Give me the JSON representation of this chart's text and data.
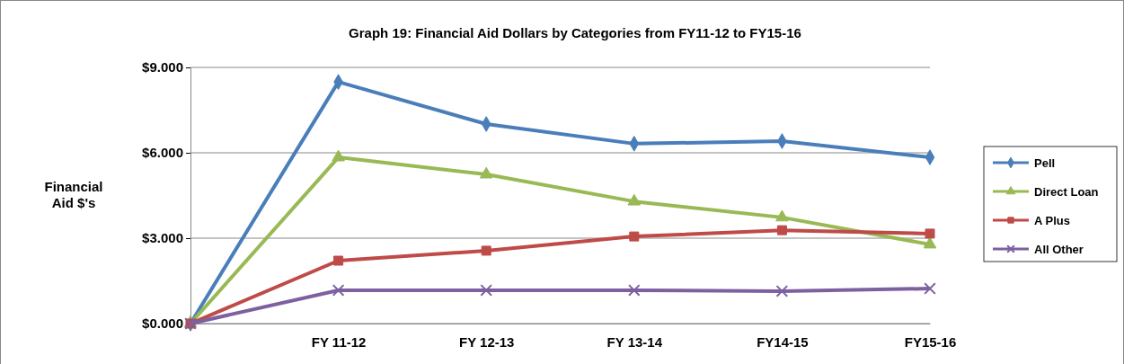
{
  "chart_data": {
    "type": "line",
    "title": "Graph 19: Financial Aid Dollars by Categories from FY11-12 to FY15-16",
    "ylabel": "Financial Aid $'s",
    "categories": [
      null,
      "FY 11-12",
      "FY 12-13",
      "FY 13-14",
      "FY14-15",
      "FY15-16"
    ],
    "ylim": [
      0,
      9
    ],
    "yticks": [
      {
        "value": 0,
        "label": "$0.000"
      },
      {
        "value": 3,
        "label": "$3.000"
      },
      {
        "value": 6,
        "label": "$6.000"
      },
      {
        "value": 9,
        "label": "$9.000"
      }
    ],
    "grid": "y",
    "legend": "right",
    "series": [
      {
        "name": "Pell",
        "color": "#4a7ebb",
        "marker": "diamond",
        "values": [
          0,
          8.49,
          7.01,
          6.32,
          6.41,
          5.84
        ]
      },
      {
        "name": "Direct Loan",
        "color": "#98b954",
        "marker": "triangle",
        "values": [
          0,
          5.84,
          5.24,
          4.29,
          3.73,
          2.78
        ]
      },
      {
        "name": "A Plus",
        "color": "#be4b48",
        "marker": "square",
        "values": [
          0,
          2.21,
          2.56,
          3.06,
          3.28,
          3.16
        ]
      },
      {
        "name": "All Other",
        "color": "#7d60a0",
        "marker": "cross",
        "values": [
          0,
          1.17,
          1.17,
          1.17,
          1.14,
          1.23
        ]
      }
    ]
  }
}
